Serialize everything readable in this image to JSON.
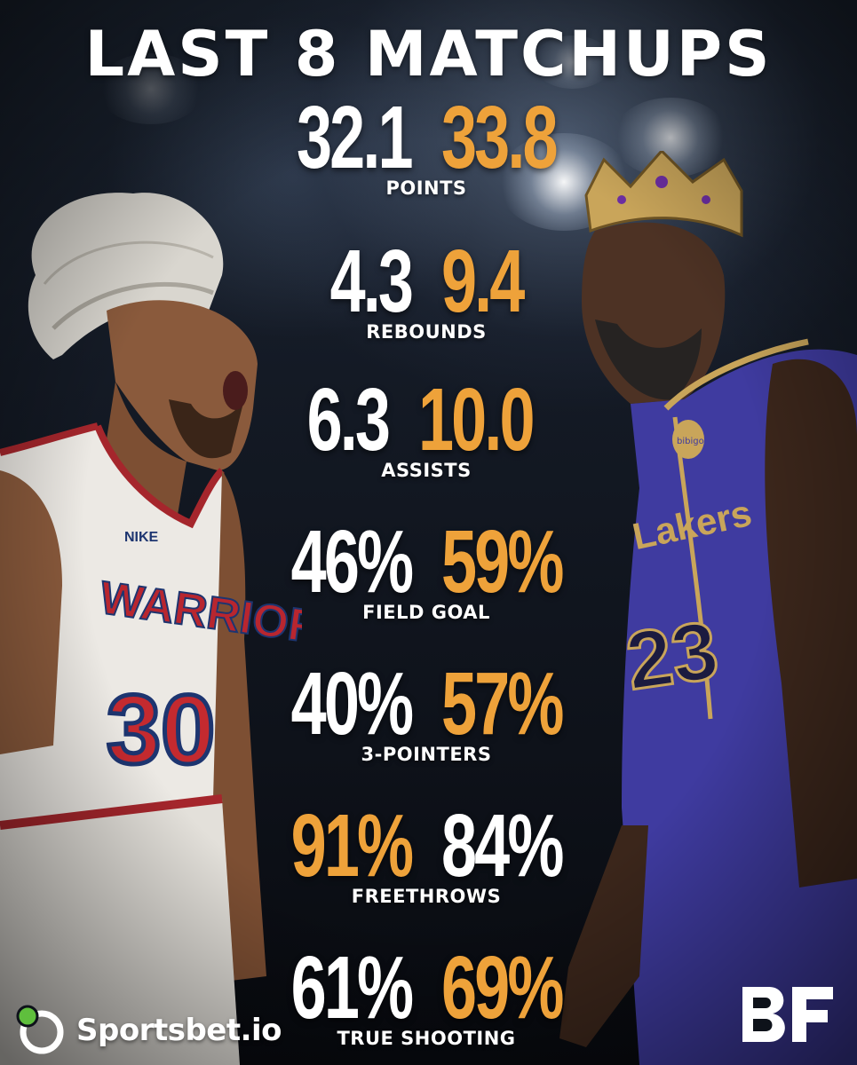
{
  "title": "LAST 8 MATCHUPS",
  "colors": {
    "accent": "#eea23a",
    "primary": "#ffffff"
  },
  "stats": [
    {
      "label": "POINTS",
      "left": "32.1",
      "right": "33.8",
      "left_color": "white",
      "right_color": "orange"
    },
    {
      "label": "REBOUNDS",
      "left": "4.3",
      "right": "9.4",
      "left_color": "white",
      "right_color": "orange"
    },
    {
      "label": "ASSISTS",
      "left": "6.3",
      "right": "10.0",
      "left_color": "white",
      "right_color": "orange"
    },
    {
      "label": "FIELD GOAL",
      "left": "46%",
      "right": "59%",
      "left_color": "white",
      "right_color": "orange"
    },
    {
      "label": "3-POINTERS",
      "left": "40%",
      "right": "57%",
      "left_color": "white",
      "right_color": "orange"
    },
    {
      "label": "FREETHROWS",
      "left": "91%",
      "right": "84%",
      "left_color": "orange",
      "right_color": "white"
    },
    {
      "label": "TRUE SHOOTING",
      "left": "61%",
      "right": "69%",
      "left_color": "white",
      "right_color": "orange"
    }
  ],
  "left_player": {
    "team_text": "WARRIORS",
    "number": "30",
    "brand": "NIKE"
  },
  "right_player": {
    "team_text": "Lakers",
    "number": "23",
    "patch": "bibigo"
  },
  "sponsor": {
    "name": "Sportsbet.io",
    "icon": "sportsbet-logo-icon"
  },
  "logo": {
    "icon": "bf-logo-icon",
    "text": "BF"
  }
}
